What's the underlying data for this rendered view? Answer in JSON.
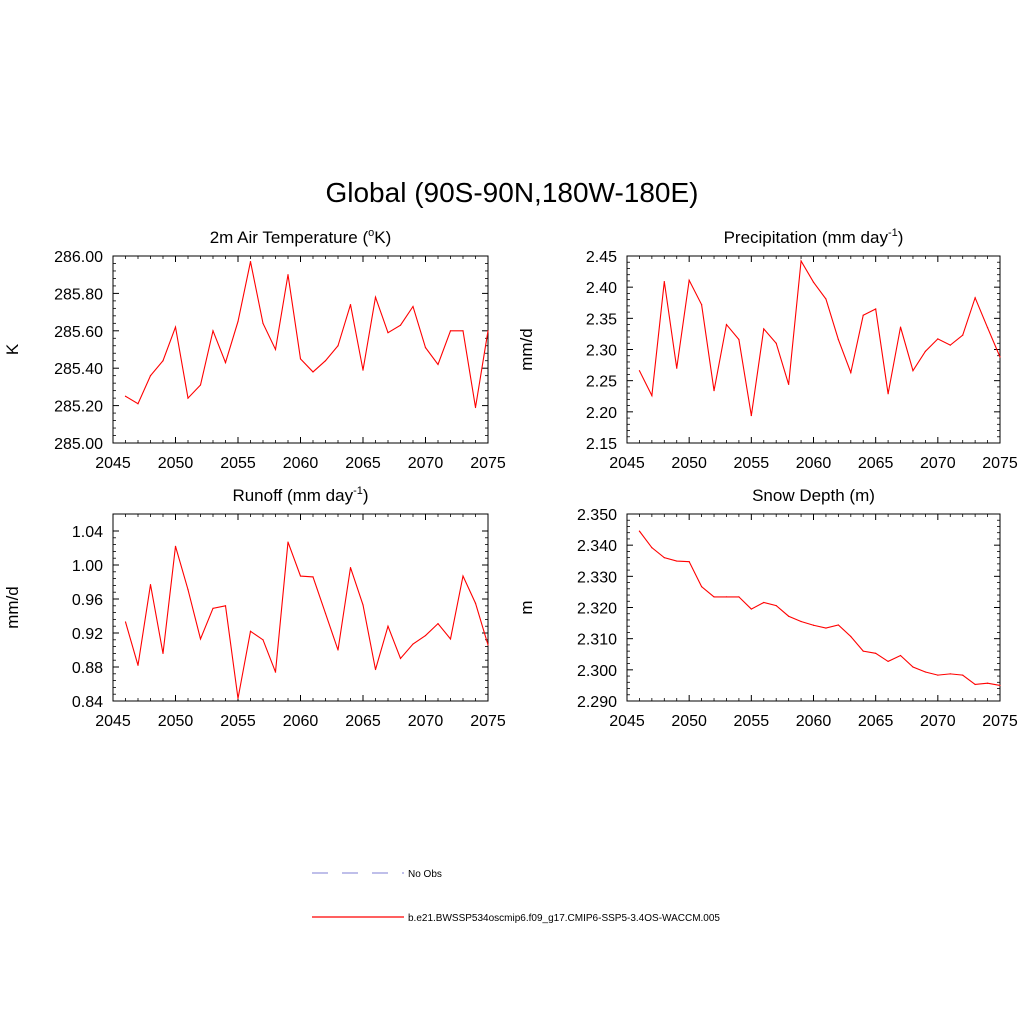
{
  "figure": {
    "title": "Global (90S-90N,180W-180E)"
  },
  "legend": {
    "entries": [
      {
        "label": "No Obs",
        "style": "dashed",
        "color": "#9999dd"
      },
      {
        "label": "b.e21.BWSSP534oscmip6.f09_g17.CMIP6-SSP5-3.4OS-WACCM.005",
        "style": "solid",
        "color": "#ff0000"
      }
    ]
  },
  "chart_data": [
    {
      "type": "line",
      "title_main": "2m Air Temperature (",
      "title_sup": "o",
      "title_rest": "K)",
      "ylabel": "K",
      "xlim": [
        2045,
        2075
      ],
      "ylim": [
        285.0,
        286.0
      ],
      "xticks": [
        2045,
        2050,
        2055,
        2060,
        2065,
        2070,
        2075
      ],
      "yticks": [
        285.0,
        285.2,
        285.4,
        285.6,
        285.8,
        286.0
      ],
      "ytick_labels": [
        "285.00",
        "285.20",
        "285.40",
        "285.60",
        "285.80",
        "286.00"
      ],
      "series": [
        {
          "name": "b.e21.BWSSP534oscmip6.f09_g17.CMIP6-SSP5-3.4OS-WACCM.005",
          "color": "#ff0000",
          "x": [
            2046,
            2047,
            2048,
            2049,
            2050,
            2051,
            2052,
            2053,
            2054,
            2055,
            2056,
            2057,
            2058,
            2059,
            2060,
            2061,
            2062,
            2063,
            2064,
            2065,
            2066,
            2067,
            2068,
            2069,
            2070,
            2071,
            2072,
            2073,
            2074,
            2075
          ],
          "y": [
            285.25,
            285.21,
            285.36,
            285.44,
            285.62,
            285.24,
            285.31,
            285.6,
            285.43,
            285.65,
            285.97,
            285.64,
            285.5,
            285.9,
            285.45,
            285.38,
            285.44,
            285.52,
            285.74,
            285.39,
            285.78,
            285.59,
            285.63,
            285.73,
            285.51,
            285.42,
            285.6,
            285.6,
            285.19,
            285.6
          ]
        }
      ]
    },
    {
      "type": "line",
      "title_main": "Precipitation (mm day",
      "title_sup": "-1",
      "title_rest": ")",
      "ylabel": "mm/d",
      "xlim": [
        2045,
        2075
      ],
      "ylim": [
        2.15,
        2.45
      ],
      "xticks": [
        2045,
        2050,
        2055,
        2060,
        2065,
        2070,
        2075
      ],
      "yticks": [
        2.15,
        2.2,
        2.25,
        2.3,
        2.35,
        2.4,
        2.45
      ],
      "ytick_labels": [
        "2.15",
        "2.20",
        "2.25",
        "2.30",
        "2.35",
        "2.40",
        "2.45"
      ],
      "series": [
        {
          "name": "b.e21.BWSSP534oscmip6.f09_g17.CMIP6-SSP5-3.4OS-WACCM.005",
          "color": "#ff0000",
          "x": [
            2046,
            2047,
            2048,
            2049,
            2050,
            2051,
            2052,
            2053,
            2054,
            2055,
            2056,
            2057,
            2058,
            2059,
            2060,
            2061,
            2062,
            2063,
            2064,
            2065,
            2066,
            2067,
            2068,
            2069,
            2070,
            2071,
            2072,
            2073,
            2074,
            2075
          ],
          "y": [
            2.266,
            2.226,
            2.409,
            2.27,
            2.411,
            2.372,
            2.234,
            2.34,
            2.316,
            2.194,
            2.333,
            2.31,
            2.244,
            2.442,
            2.408,
            2.381,
            2.316,
            2.263,
            2.355,
            2.365,
            2.229,
            2.336,
            2.266,
            2.297,
            2.317,
            2.307,
            2.323,
            2.383,
            2.335,
            2.288
          ]
        }
      ]
    },
    {
      "type": "line",
      "title_main": "Runoff (mm day",
      "title_sup": "-1",
      "title_rest": ")",
      "ylabel": "mm/d",
      "xlim": [
        2045,
        2075
      ],
      "ylim": [
        0.84,
        1.06
      ],
      "xticks": [
        2045,
        2050,
        2055,
        2060,
        2065,
        2070,
        2075
      ],
      "yticks": [
        0.84,
        0.88,
        0.92,
        0.96,
        1.0,
        1.04
      ],
      "ytick_labels": [
        "0.84",
        "0.88",
        "0.92",
        "0.96",
        "1.00",
        "1.04"
      ],
      "series": [
        {
          "name": "b.e21.BWSSP534oscmip6.f09_g17.CMIP6-SSP5-3.4OS-WACCM.005",
          "color": "#ff0000",
          "x": [
            2046,
            2047,
            2048,
            2049,
            2050,
            2051,
            2052,
            2053,
            2054,
            2055,
            2056,
            2057,
            2058,
            2059,
            2060,
            2061,
            2062,
            2063,
            2064,
            2065,
            2066,
            2067,
            2068,
            2069,
            2070,
            2071,
            2072,
            2073,
            2074,
            2075
          ],
          "y": [
            0.933,
            0.882,
            0.977,
            0.896,
            1.022,
            0.971,
            0.913,
            0.949,
            0.952,
            0.843,
            0.922,
            0.912,
            0.874,
            1.027,
            0.987,
            0.986,
            0.943,
            0.9,
            0.997,
            0.953,
            0.877,
            0.928,
            0.89,
            0.907,
            0.917,
            0.931,
            0.913,
            0.987,
            0.955,
            0.906
          ]
        }
      ]
    },
    {
      "type": "line",
      "title_main": "Snow Depth (m)",
      "title_sup": "",
      "title_rest": "",
      "ylabel": "m",
      "xlim": [
        2045,
        2075
      ],
      "ylim": [
        2.29,
        2.35
      ],
      "xticks": [
        2045,
        2050,
        2055,
        2060,
        2065,
        2070,
        2075
      ],
      "yticks": [
        2.29,
        2.3,
        2.31,
        2.32,
        2.33,
        2.34,
        2.35
      ],
      "ytick_labels": [
        "2.290",
        "2.300",
        "2.310",
        "2.320",
        "2.330",
        "2.340",
        "2.350"
      ],
      "series": [
        {
          "name": "b.e21.BWSSP534oscmip6.f09_g17.CMIP6-SSP5-3.4OS-WACCM.005",
          "color": "#ff0000",
          "x": [
            2046,
            2047,
            2048,
            2049,
            2050,
            2051,
            2052,
            2053,
            2054,
            2055,
            2056,
            2057,
            2058,
            2059,
            2060,
            2061,
            2062,
            2063,
            2064,
            2065,
            2066,
            2067,
            2068,
            2069,
            2070,
            2071,
            2072,
            2073,
            2074,
            2075
          ],
          "y": [
            2.3445,
            2.3392,
            2.336,
            2.3349,
            2.3347,
            2.3267,
            2.3234,
            2.3234,
            2.3234,
            2.3195,
            2.3216,
            2.3206,
            2.3172,
            2.3155,
            2.3143,
            2.3134,
            2.3144,
            2.3107,
            2.306,
            2.3053,
            2.3027,
            2.3046,
            2.3009,
            2.2993,
            2.2983,
            2.2987,
            2.2983,
            2.2953,
            2.2957,
            2.295
          ]
        }
      ]
    }
  ]
}
